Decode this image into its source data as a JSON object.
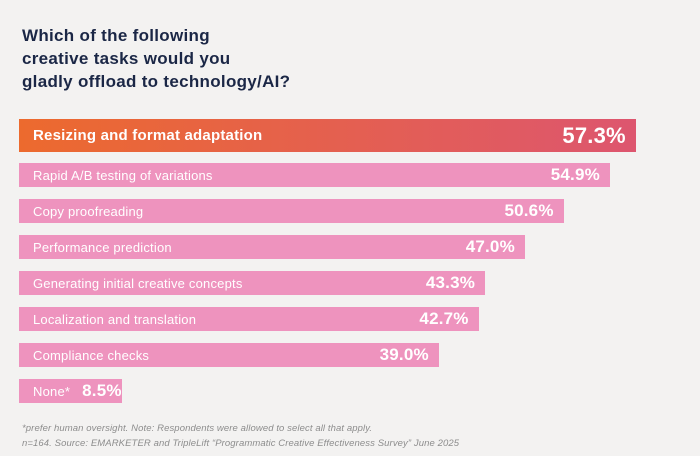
{
  "header": {
    "title_lines": [
      "Which of the following",
      "creative tasks would you",
      "gladly offload to technology/AI?"
    ]
  },
  "chart_data": {
    "type": "bar",
    "orientation": "horizontal",
    "title": "Which of the following creative tasks would you gladly offload to technology/AI?",
    "categories": [
      "Resizing and format adaptation",
      "Rapid A/B testing of variations",
      "Copy proofreading",
      "Performance prediction",
      "Generating initial creative concepts",
      "Localization and translation",
      "Compliance checks",
      "None*"
    ],
    "values": [
      57.3,
      54.9,
      50.6,
      47.0,
      43.3,
      42.7,
      39.0,
      8.5
    ],
    "display_values": [
      "57.3%",
      "54.9%",
      "50.6%",
      "47.0%",
      "43.3%",
      "42.7%",
      "39.0%",
      "8.5%"
    ],
    "unit": "%",
    "xlim": [
      0,
      61.5
    ],
    "grid": false,
    "legend": false,
    "highlight_index": 0,
    "colors": {
      "bar": "#ee93be",
      "highlight_gradient_start": "#ec6a2e",
      "highlight_gradient_end": "#dd566f",
      "value_text": "#ffffff",
      "title_text": "#1b2746",
      "background": "#f3f2f1",
      "footnote_text": "#8d8d8d"
    }
  },
  "footer": {
    "line1": "*prefer human oversight. Note: Respondents were allowed to select all that apply.",
    "line2": "n=164. Source: EMARKETER and TripleLift “Programmatic Creative Effectiveness Survey” June 2025"
  }
}
